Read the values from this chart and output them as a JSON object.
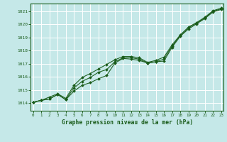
{
  "title": "Graphe pression niveau de la mer (hPa)",
  "bg_color": "#c5e8e8",
  "grid_color": "#ffffff",
  "line_color": "#1a5c1a",
  "x_ticks": [
    0,
    1,
    2,
    3,
    4,
    5,
    6,
    7,
    8,
    9,
    10,
    11,
    12,
    13,
    14,
    15,
    16,
    17,
    18,
    19,
    20,
    21,
    22,
    23
  ],
  "y_ticks": [
    1014,
    1015,
    1016,
    1017,
    1018,
    1019,
    1020,
    1021
  ],
  "ylim": [
    1013.4,
    1021.6
  ],
  "xlim": [
    -0.3,
    23.3
  ],
  "series": [
    {
      "x": [
        0,
        1,
        2,
        3,
        4,
        5,
        6,
        7,
        8,
        9,
        10,
        11,
        12,
        13,
        14,
        15,
        16,
        17,
        18,
        19,
        20,
        21,
        22,
        23
      ],
      "y": [
        1014.05,
        1014.2,
        1014.3,
        1014.65,
        1014.25,
        1014.9,
        1015.35,
        1015.55,
        1015.85,
        1016.1,
        1017.05,
        1017.4,
        1017.35,
        1017.25,
        1017.05,
        1017.15,
        1017.2,
        1018.25,
        1019.1,
        1019.65,
        1020.05,
        1020.45,
        1020.95,
        1021.15
      ]
    },
    {
      "x": [
        0,
        1,
        2,
        3,
        4,
        5,
        6,
        7,
        8,
        9,
        10,
        11,
        12,
        13,
        14,
        15,
        16,
        17,
        18,
        19,
        20,
        21,
        22,
        23
      ],
      "y": [
        1014.05,
        1014.2,
        1014.3,
        1014.65,
        1014.25,
        1015.15,
        1015.65,
        1015.95,
        1016.35,
        1016.55,
        1017.15,
        1017.45,
        1017.45,
        1017.35,
        1017.05,
        1017.15,
        1017.35,
        1018.35,
        1019.15,
        1019.75,
        1020.1,
        1020.5,
        1021.0,
        1021.2
      ]
    },
    {
      "x": [
        0,
        1,
        2,
        3,
        4,
        5,
        6,
        7,
        8,
        9,
        10,
        11,
        12,
        13,
        14,
        15,
        16,
        17,
        18,
        19,
        20,
        21,
        22,
        23
      ],
      "y": [
        1014.05,
        1014.2,
        1014.45,
        1014.7,
        1014.35,
        1015.35,
        1015.95,
        1016.25,
        1016.6,
        1016.95,
        1017.3,
        1017.55,
        1017.55,
        1017.45,
        1017.1,
        1017.25,
        1017.5,
        1018.45,
        1019.2,
        1019.8,
        1020.15,
        1020.55,
        1021.05,
        1021.25
      ]
    }
  ]
}
